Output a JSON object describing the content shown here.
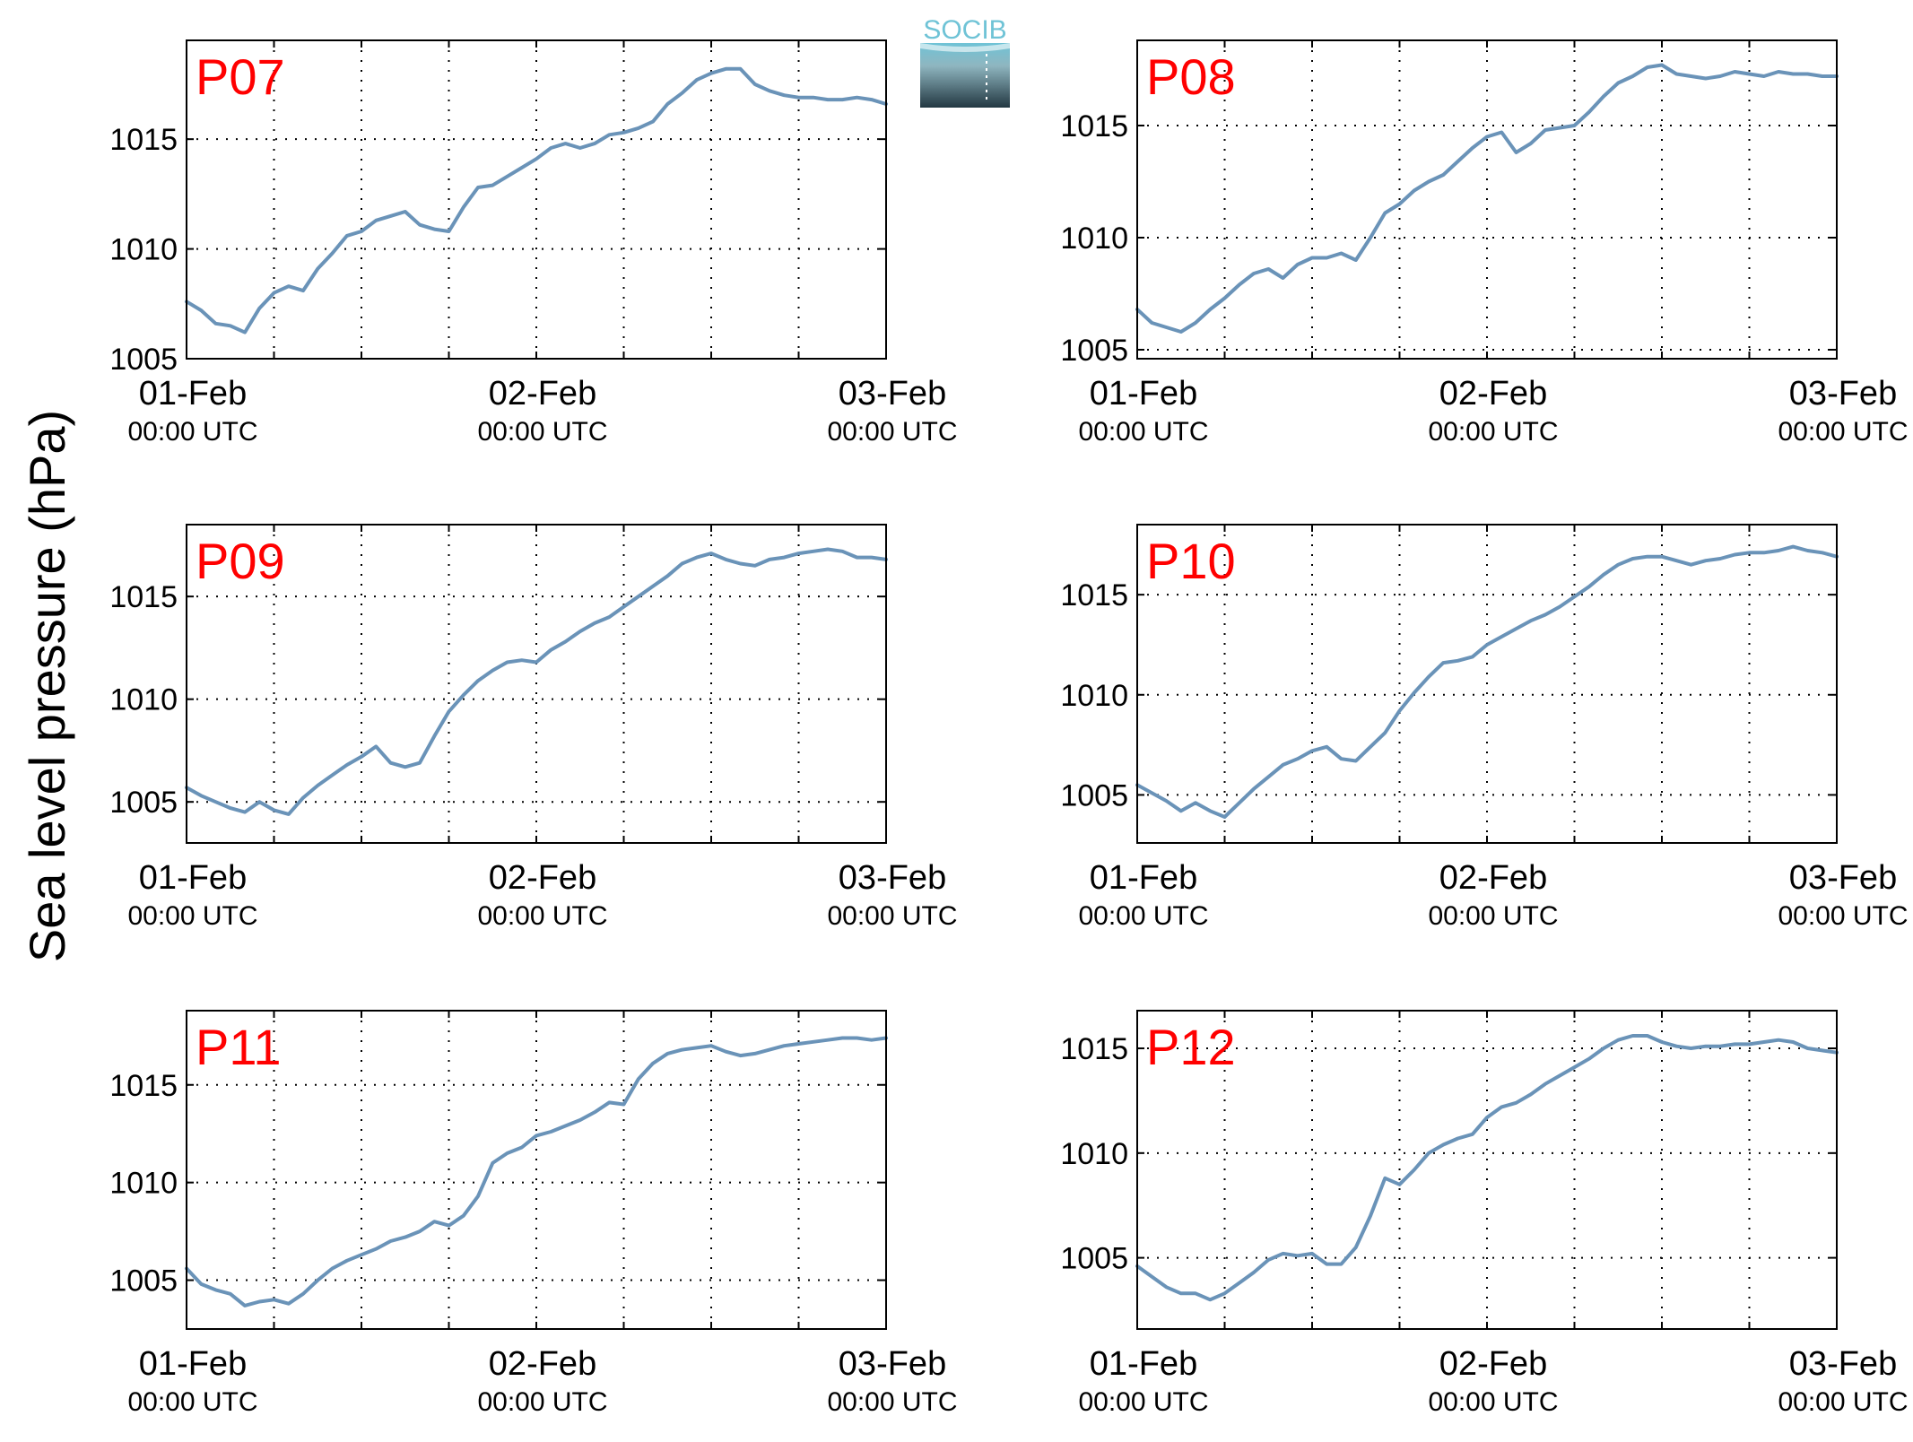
{
  "figure": {
    "ylabel": "Sea level pressure (hPa)",
    "logo_text": "SOCIB"
  },
  "colors": {
    "series": "#6A93B8",
    "station_label": "#FF0000",
    "grid": "#000000",
    "logo_top": "#6FC3D6",
    "logo_bottom": "#233842"
  },
  "x_axis": {
    "range": [
      "2015-02-01 00:00",
      "2015-02-03 00:00"
    ],
    "ticks": [
      {
        "date": "01-Feb",
        "time": "00:00 UTC"
      },
      {
        "date": "02-Feb",
        "time": "00:00 UTC"
      },
      {
        "date": "03-Feb",
        "time": "00:00 UTC"
      }
    ],
    "grid_hours": [
      6,
      12,
      18,
      24,
      30,
      36,
      42
    ]
  },
  "chart_data": [
    {
      "type": "line",
      "title": "P07",
      "ylim": [
        1005,
        1019.5
      ],
      "yticks": [
        "1005",
        "1010",
        "1015"
      ],
      "grid": true,
      "x_hours": [
        0,
        1,
        2,
        3,
        4,
        5,
        6,
        7,
        8,
        9,
        10,
        11,
        12,
        13,
        14,
        15,
        16,
        17,
        18,
        19,
        20,
        21,
        22,
        23,
        24,
        25,
        26,
        27,
        28,
        29,
        30,
        31,
        32,
        33,
        34,
        35,
        36,
        37,
        38,
        39,
        40,
        41,
        42,
        43,
        44,
        45,
        46,
        47,
        48
      ],
      "values": [
        1007.6,
        1007.2,
        1006.6,
        1006.5,
        1006.2,
        1007.3,
        1008.0,
        1008.3,
        1008.1,
        1009.1,
        1009.8,
        1010.6,
        1010.8,
        1011.3,
        1011.5,
        1011.7,
        1011.1,
        1010.9,
        1010.8,
        1011.9,
        1012.8,
        1012.9,
        1013.3,
        1013.7,
        1014.1,
        1014.6,
        1014.8,
        1014.6,
        1014.8,
        1015.2,
        1015.3,
        1015.5,
        1015.8,
        1016.6,
        1017.1,
        1017.7,
        1018.0,
        1018.2,
        1018.2,
        1017.5,
        1017.2,
        1017.0,
        1016.9,
        1016.9,
        1016.8,
        1016.8,
        1016.9,
        1016.8,
        1016.6
      ],
      "grid_values": [
        1010,
        1015
      ]
    },
    {
      "type": "line",
      "title": "P08",
      "ylim": [
        1004.6,
        1018.8
      ],
      "yticks": [
        "1005",
        "1010",
        "1015"
      ],
      "grid": true,
      "x_hours": [
        0,
        1,
        2,
        3,
        4,
        5,
        6,
        7,
        8,
        9,
        10,
        11,
        12,
        13,
        14,
        15,
        16,
        17,
        18,
        19,
        20,
        21,
        22,
        23,
        24,
        25,
        26,
        27,
        28,
        29,
        30,
        31,
        32,
        33,
        34,
        35,
        36,
        37,
        38,
        39,
        40,
        41,
        42,
        43,
        44,
        45,
        46,
        47,
        48
      ],
      "values": [
        1006.8,
        1006.2,
        1006.0,
        1005.8,
        1006.2,
        1006.8,
        1007.3,
        1007.9,
        1008.4,
        1008.6,
        1008.2,
        1008.8,
        1009.1,
        1009.1,
        1009.3,
        1009.0,
        1010.0,
        1011.1,
        1011.5,
        1012.1,
        1012.5,
        1012.8,
        1013.4,
        1014.0,
        1014.5,
        1014.7,
        1013.8,
        1014.2,
        1014.8,
        1014.9,
        1015.0,
        1015.6,
        1016.3,
        1016.9,
        1017.2,
        1017.6,
        1017.7,
        1017.3,
        1017.2,
        1017.1,
        1017.2,
        1017.4,
        1017.3,
        1017.2,
        1017.4,
        1017.3,
        1017.3,
        1017.2,
        1017.2
      ],
      "grid_values": [
        1005,
        1010,
        1015
      ]
    },
    {
      "type": "line",
      "title": "P09",
      "ylim": [
        1003,
        1018.5
      ],
      "yticks": [
        "1005",
        "1010",
        "1015"
      ],
      "grid": true,
      "x_hours": [
        0,
        1,
        2,
        3,
        4,
        5,
        6,
        7,
        8,
        9,
        10,
        11,
        12,
        13,
        14,
        15,
        16,
        17,
        18,
        19,
        20,
        21,
        22,
        23,
        24,
        25,
        26,
        27,
        28,
        29,
        30,
        31,
        32,
        33,
        34,
        35,
        36,
        37,
        38,
        39,
        40,
        41,
        42,
        43,
        44,
        45,
        46,
        47,
        48
      ],
      "values": [
        1005.7,
        1005.3,
        1005.0,
        1004.7,
        1004.5,
        1005.0,
        1004.6,
        1004.4,
        1005.2,
        1005.8,
        1006.3,
        1006.8,
        1007.2,
        1007.7,
        1006.9,
        1006.7,
        1006.9,
        1008.2,
        1009.4,
        1010.2,
        1010.9,
        1011.4,
        1011.8,
        1011.9,
        1011.8,
        1012.4,
        1012.8,
        1013.3,
        1013.7,
        1014.0,
        1014.5,
        1015.0,
        1015.5,
        1016.0,
        1016.6,
        1016.9,
        1017.1,
        1016.8,
        1016.6,
        1016.5,
        1016.8,
        1016.9,
        1017.1,
        1017.2,
        1017.3,
        1017.2,
        1016.9,
        1016.9,
        1016.8
      ],
      "grid_values": [
        1005,
        1010,
        1015
      ]
    },
    {
      "type": "line",
      "title": "P10",
      "ylim": [
        1002.6,
        1018.5
      ],
      "yticks": [
        "1005",
        "1010",
        "1015"
      ],
      "grid": true,
      "x_hours": [
        0,
        1,
        2,
        3,
        4,
        5,
        6,
        7,
        8,
        9,
        10,
        11,
        12,
        13,
        14,
        15,
        16,
        17,
        18,
        19,
        20,
        21,
        22,
        23,
        24,
        25,
        26,
        27,
        28,
        29,
        30,
        31,
        32,
        33,
        34,
        35,
        36,
        37,
        38,
        39,
        40,
        41,
        42,
        43,
        44,
        45,
        46,
        47,
        48
      ],
      "values": [
        1005.5,
        1005.1,
        1004.7,
        1004.2,
        1004.6,
        1004.2,
        1003.9,
        1004.6,
        1005.3,
        1005.9,
        1006.5,
        1006.8,
        1007.2,
        1007.4,
        1006.8,
        1006.7,
        1007.4,
        1008.1,
        1009.2,
        1010.1,
        1010.9,
        1011.6,
        1011.7,
        1011.9,
        1012.5,
        1012.9,
        1013.3,
        1013.7,
        1014.0,
        1014.4,
        1014.9,
        1015.4,
        1016.0,
        1016.5,
        1016.8,
        1016.9,
        1016.9,
        1016.7,
        1016.5,
        1016.7,
        1016.8,
        1017.0,
        1017.1,
        1017.1,
        1017.2,
        1017.4,
        1017.2,
        1017.1,
        1016.9
      ],
      "grid_values": [
        1005,
        1010,
        1015
      ]
    },
    {
      "type": "line",
      "title": "P11",
      "ylim": [
        1002.5,
        1018.8
      ],
      "yticks": [
        "1005",
        "1010",
        "1015"
      ],
      "grid": true,
      "x_hours": [
        0,
        1,
        2,
        3,
        4,
        5,
        6,
        7,
        8,
        9,
        10,
        11,
        12,
        13,
        14,
        15,
        16,
        17,
        18,
        19,
        20,
        21,
        22,
        23,
        24,
        25,
        26,
        27,
        28,
        29,
        30,
        31,
        32,
        33,
        34,
        35,
        36,
        37,
        38,
        39,
        40,
        41,
        42,
        43,
        44,
        45,
        46,
        47,
        48
      ],
      "values": [
        1005.6,
        1004.8,
        1004.5,
        1004.3,
        1003.7,
        1003.9,
        1004.0,
        1003.8,
        1004.3,
        1005.0,
        1005.6,
        1006.0,
        1006.3,
        1006.6,
        1007.0,
        1007.2,
        1007.5,
        1008.0,
        1007.8,
        1008.3,
        1009.3,
        1011.0,
        1011.5,
        1011.8,
        1012.4,
        1012.6,
        1012.9,
        1013.2,
        1013.6,
        1014.1,
        1014.0,
        1015.3,
        1016.1,
        1016.6,
        1016.8,
        1016.9,
        1017.0,
        1016.7,
        1016.5,
        1016.6,
        1016.8,
        1017.0,
        1017.1,
        1017.2,
        1017.3,
        1017.4,
        1017.4,
        1017.3,
        1017.4
      ],
      "grid_values": [
        1005,
        1010,
        1015
      ]
    },
    {
      "type": "line",
      "title": "P12",
      "ylim": [
        1001.6,
        1016.8
      ],
      "yticks": [
        "1005",
        "1010",
        "1015"
      ],
      "grid": true,
      "x_hours": [
        0,
        1,
        2,
        3,
        4,
        5,
        6,
        7,
        8,
        9,
        10,
        11,
        12,
        13,
        14,
        15,
        16,
        17,
        18,
        19,
        20,
        21,
        22,
        23,
        24,
        25,
        26,
        27,
        28,
        29,
        30,
        31,
        32,
        33,
        34,
        35,
        36,
        37,
        38,
        39,
        40,
        41,
        42,
        43,
        44,
        45,
        46,
        47,
        48
      ],
      "values": [
        1004.6,
        1004.1,
        1003.6,
        1003.3,
        1003.3,
        1003.0,
        1003.3,
        1003.8,
        1004.3,
        1004.9,
        1005.2,
        1005.1,
        1005.2,
        1004.7,
        1004.7,
        1005.5,
        1007.0,
        1008.8,
        1008.5,
        1009.2,
        1010.0,
        1010.4,
        1010.7,
        1010.9,
        1011.7,
        1012.2,
        1012.4,
        1012.8,
        1013.3,
        1013.7,
        1014.1,
        1014.5,
        1015.0,
        1015.4,
        1015.6,
        1015.6,
        1015.3,
        1015.1,
        1015.0,
        1015.1,
        1015.1,
        1015.2,
        1015.2,
        1015.3,
        1015.4,
        1015.3,
        1015.0,
        1014.9,
        1014.8
      ],
      "grid_values": [
        1005,
        1010,
        1015
      ]
    }
  ]
}
